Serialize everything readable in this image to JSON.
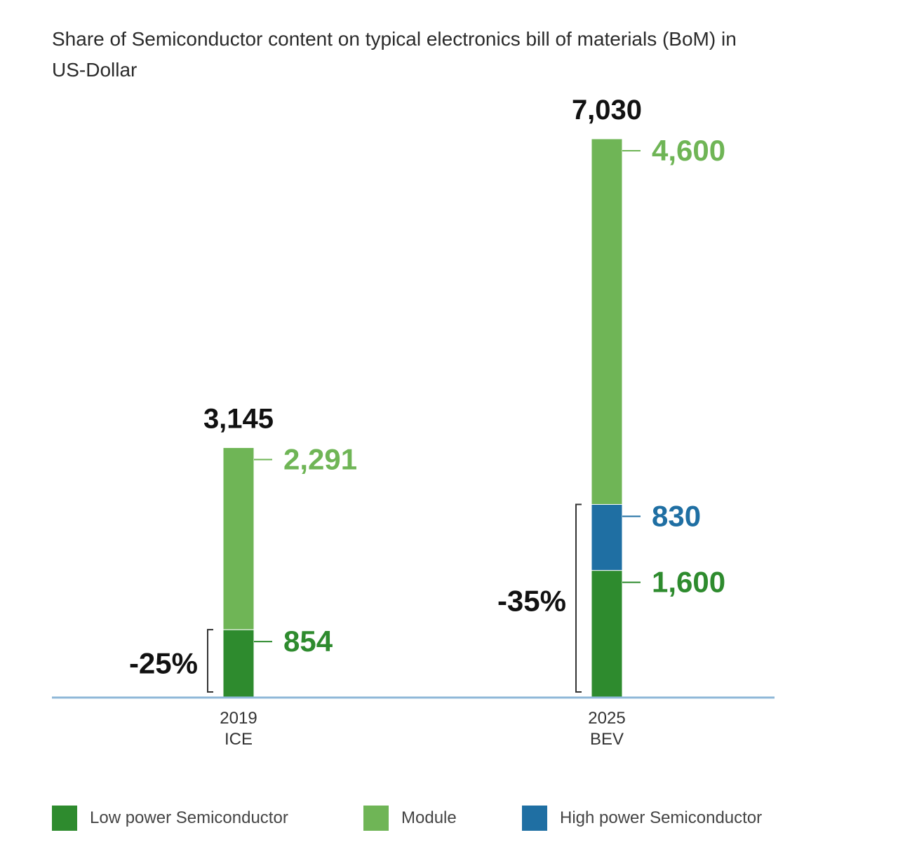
{
  "chart_data": {
    "type": "bar",
    "stacked": true,
    "title": "Share of Semiconductor content on typical electronics bill of materials (BoM) in US-Dollar",
    "categories": [
      {
        "year": "2019",
        "label": "ICE"
      },
      {
        "year": "2025",
        "label": "BEV"
      }
    ],
    "series": [
      {
        "name": "Low power Semiconductor",
        "color": "#2e8b2e",
        "values": [
          854,
          1600
        ]
      },
      {
        "name": "High power Semiconductor",
        "color": "#1f6fa3",
        "values": [
          0,
          830
        ]
      },
      {
        "name": "Module",
        "color": "#6fb556",
        "values": [
          2291,
          4600
        ]
      }
    ],
    "totals": [
      "3,145",
      "7,030"
    ],
    "value_labels": [
      {
        "module": "2,291",
        "low": "854"
      },
      {
        "module": "4,600",
        "high": "830",
        "low": "1,600"
      }
    ],
    "brackets": [
      "-25%",
      "-35%"
    ],
    "axis_color": "#8fb8d8",
    "ylim": [
      0,
      7030
    ],
    "legend_position": "bottom"
  },
  "legend": [
    {
      "name": "Low power Semiconductor",
      "color": "#2e8b2e"
    },
    {
      "name": "Module",
      "color": "#6fb556"
    },
    {
      "name": "High power Semiconductor",
      "color": "#1f6fa3"
    }
  ]
}
